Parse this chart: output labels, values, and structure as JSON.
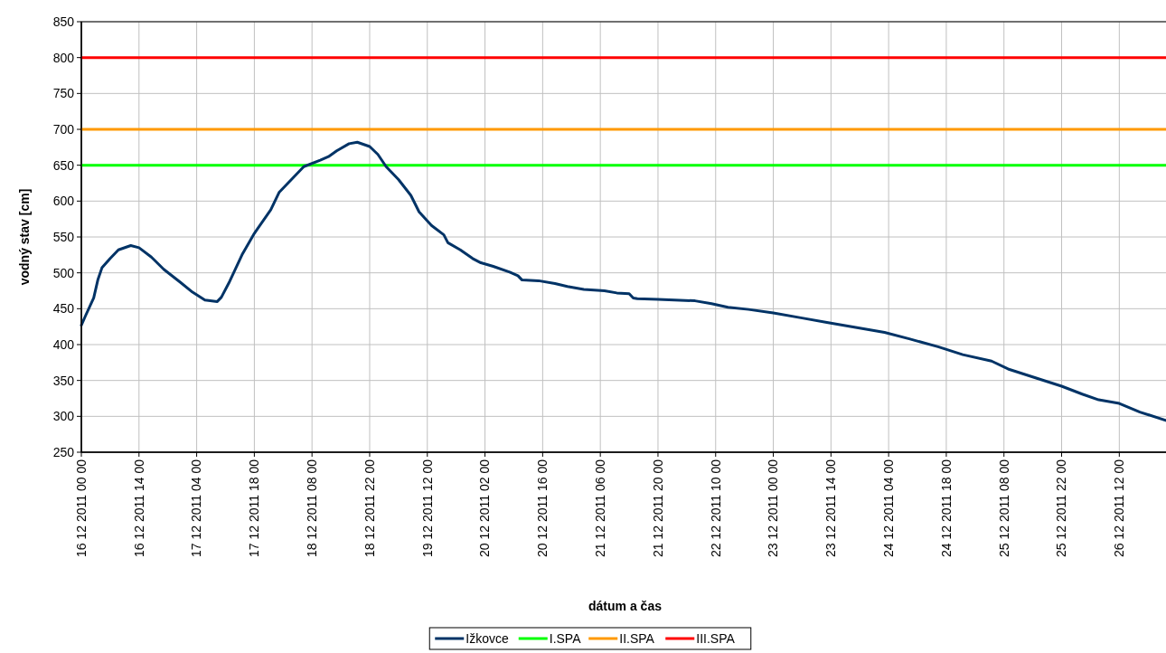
{
  "chart_data": {
    "type": "line",
    "xlabel": "dátum a čas",
    "ylabel": "vodný stav [cm]",
    "xlim": [
      "2011-12-16T00:00",
      "2011-12-27T00:00"
    ],
    "xticks": [
      {
        "value": "2011-12-16T00:00",
        "label": "16 12 2011 00 00"
      },
      {
        "value": "2011-12-16T14:00",
        "label": "16 12 2011 14 00"
      },
      {
        "value": "2011-12-17T04:00",
        "label": "17 12 2011 04 00"
      },
      {
        "value": "2011-12-17T18:00",
        "label": "17 12 2011 18 00"
      },
      {
        "value": "2011-12-18T08:00",
        "label": "18 12 2011 08 00"
      },
      {
        "value": "2011-12-18T22:00",
        "label": "18 12 2011 22 00"
      },
      {
        "value": "2011-12-19T12:00",
        "label": "19 12 2011 12 00"
      },
      {
        "value": "2011-12-20T02:00",
        "label": "20 12 2011 02 00"
      },
      {
        "value": "2011-12-20T16:00",
        "label": "20 12 2011 16 00"
      },
      {
        "value": "2011-12-21T06:00",
        "label": "21 12 2011 06 00"
      },
      {
        "value": "2011-12-21T20:00",
        "label": "21 12 2011 20 00"
      },
      {
        "value": "2011-12-22T10:00",
        "label": "22 12 2011 10 00"
      },
      {
        "value": "2011-12-23T00:00",
        "label": "23 12 2011 00 00"
      },
      {
        "value": "2011-12-23T14:00",
        "label": "23 12 2011 14 00"
      },
      {
        "value": "2011-12-24T04:00",
        "label": "24 12 2011 04 00"
      },
      {
        "value": "2011-12-24T18:00",
        "label": "24 12 2011 18 00"
      },
      {
        "value": "2011-12-25T08:00",
        "label": "25 12 2011 08 00"
      },
      {
        "value": "2011-12-25T22:00",
        "label": "25 12 2011 22 00"
      },
      {
        "value": "2011-12-26T12:00",
        "label": "26 12 2011 12 00"
      }
    ],
    "ylim": [
      250,
      850
    ],
    "yticks": [
      250,
      300,
      350,
      400,
      450,
      500,
      550,
      600,
      650,
      700,
      750,
      800,
      850
    ],
    "grid": true,
    "legend": "bottom",
    "marker": "none",
    "line_style": "solid",
    "series": [
      {
        "name": "Ižkovce",
        "color": "#003366",
        "x": [
          "2011-12-16T00:00",
          "2011-12-16T01:00",
          "2011-12-16T03:00",
          "2011-12-16T04:00",
          "2011-12-16T05:00",
          "2011-12-16T07:00",
          "2011-12-16T09:00",
          "2011-12-16T12:00",
          "2011-12-16T14:00",
          "2011-12-16T17:00",
          "2011-12-16T20:00",
          "2011-12-17T00:00",
          "2011-12-17T03:00",
          "2011-12-17T06:00",
          "2011-12-17T09:00",
          "2011-12-17T10:00",
          "2011-12-17T12:00",
          "2011-12-17T15:00",
          "2011-12-17T18:00",
          "2011-12-17T22:00",
          "2011-12-18T00:00",
          "2011-12-18T03:00",
          "2011-12-18T06:00",
          "2011-12-18T10:00",
          "2011-12-18T12:00",
          "2011-12-18T14:00",
          "2011-12-18T17:00",
          "2011-12-18T19:00",
          "2011-12-18T22:00",
          "2011-12-19T00:00",
          "2011-12-19T02:00",
          "2011-12-19T05:00",
          "2011-12-19T08:00",
          "2011-12-19T10:00",
          "2011-12-19T13:00",
          "2011-12-19T16:00",
          "2011-12-19T17:00",
          "2011-12-19T20:00",
          "2011-12-19T23:00",
          "2011-12-20T01:00",
          "2011-12-20T04:00",
          "2011-12-20T08:00",
          "2011-12-20T10:00",
          "2011-12-20T11:00",
          "2011-12-20T15:00",
          "2011-12-20T19:00",
          "2011-12-20T22:00",
          "2011-12-21T02:00",
          "2011-12-21T07:00",
          "2011-12-21T10:00",
          "2011-12-21T13:00",
          "2011-12-21T14:00",
          "2011-12-21T15:00",
          "2011-12-21T20:00",
          "2011-12-22T00:00",
          "2011-12-22T05:00",
          "2011-12-22T09:00",
          "2011-12-22T13:00",
          "2011-12-22T18:00",
          "2011-12-23T00:00",
          "2011-12-23T07:00",
          "2011-12-23T13:00",
          "2011-12-23T20:00",
          "2011-12-24T03:00",
          "2011-12-24T09:00",
          "2011-12-24T16:00",
          "2011-12-24T22:00",
          "2011-12-25T05:00",
          "2011-12-25T09:00",
          "2011-12-25T16:00",
          "2011-12-25T22:00",
          "2011-12-26T03:00",
          "2011-12-26T07:00",
          "2011-12-26T12:00",
          "2011-12-26T17:00",
          "2011-12-27T00:00"
        ],
        "values": [
          427,
          440,
          465,
          490,
          507,
          520,
          532,
          538,
          535,
          522,
          505,
          487,
          473,
          462,
          460,
          466,
          488,
          525,
          555,
          588,
          612,
          630,
          648,
          657,
          662,
          670,
          680,
          682,
          676,
          665,
          648,
          630,
          608,
          585,
          566,
          553,
          542,
          532,
          520,
          514,
          509,
          501,
          496,
          490,
          489,
          485,
          481,
          477,
          475,
          472,
          471,
          465,
          464,
          463,
          462,
          461,
          457,
          452,
          449,
          444,
          437,
          431,
          424,
          417,
          408,
          397,
          386,
          377,
          366,
          353,
          342,
          331,
          323,
          318,
          306,
          293
        ]
      },
      {
        "name": "I.SPA",
        "color": "#00ff00",
        "x": [
          "2011-12-16T00:00",
          "2011-12-27T00:00"
        ],
        "values": [
          650,
          650
        ]
      },
      {
        "name": "II.SPA",
        "color": "#ff9900",
        "x": [
          "2011-12-16T00:00",
          "2011-12-27T00:00"
        ],
        "values": [
          700,
          700
        ]
      },
      {
        "name": "III.SPA",
        "color": "#ff0000",
        "x": [
          "2011-12-16T00:00",
          "2011-12-27T00:00"
        ],
        "values": [
          800,
          800
        ]
      }
    ]
  }
}
